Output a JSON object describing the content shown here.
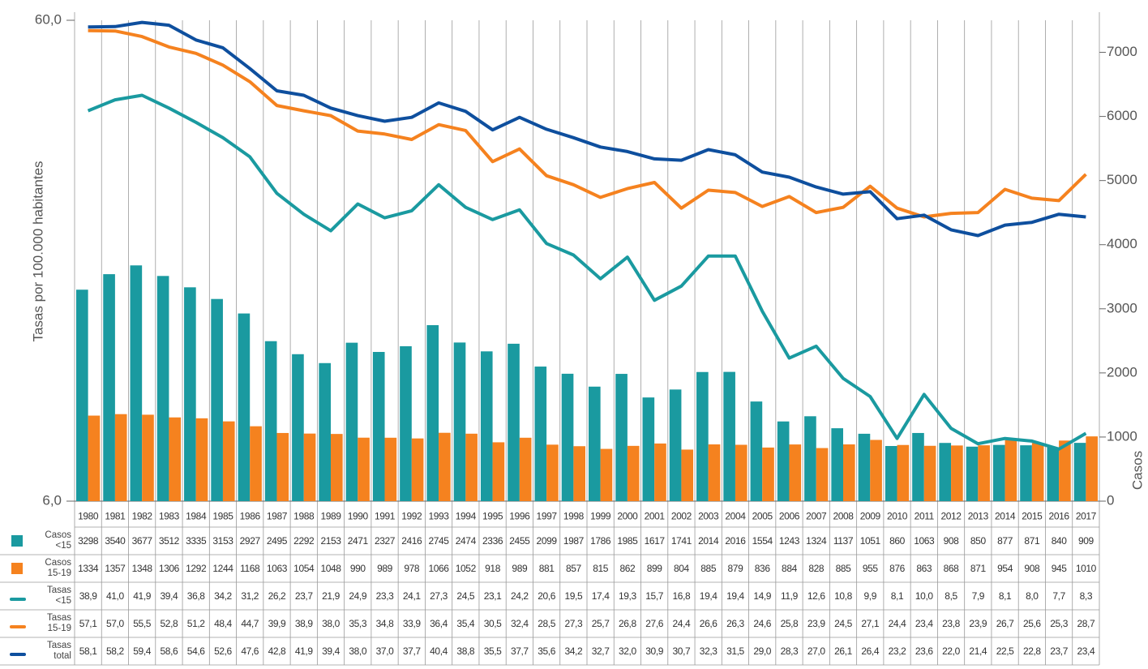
{
  "chart_data": {
    "type": "bar",
    "y_label": "Tasas por 100.000 habitantes",
    "y2_label": "Casos",
    "log_y": true,
    "ylim": [
      6,
      60
    ],
    "yticks": [
      {
        "value": 6,
        "label": "6,0"
      },
      {
        "value": 60,
        "label": "60,0"
      }
    ],
    "y2lim": [
      0,
      7500
    ],
    "y2ticks": [
      0,
      1000,
      2000,
      3000,
      4000,
      5000,
      6000,
      7000
    ],
    "categories": [
      "1980",
      "1981",
      "1982",
      "1983",
      "1984",
      "1985",
      "1986",
      "1987",
      "1988",
      "1989",
      "1990",
      "1991",
      "1992",
      "1993",
      "1994",
      "1995",
      "1996",
      "1997",
      "1998",
      "1999",
      "2000",
      "2001",
      "2002",
      "2003",
      "2004",
      "2005",
      "2006",
      "2007",
      "2008",
      "2009",
      "2010",
      "2011",
      "2012",
      "2013",
      "2014",
      "2015",
      "2016",
      "2017"
    ],
    "series": [
      {
        "name": [
          "Casos",
          "<15"
        ],
        "type": "bar",
        "axis": "y2",
        "color": "#1a9aa0",
        "values": [
          3298,
          3540,
          3677,
          3512,
          3335,
          3153,
          2927,
          2495,
          2292,
          2153,
          2471,
          2327,
          2416,
          2745,
          2474,
          2336,
          2455,
          2099,
          1987,
          1786,
          1985,
          1617,
          1741,
          2014,
          2016,
          1554,
          1243,
          1324,
          1137,
          1051,
          860,
          1063,
          908,
          850,
          877,
          871,
          840,
          909
        ]
      },
      {
        "name": [
          "Casos",
          "15-19"
        ],
        "type": "bar",
        "axis": "y2",
        "color": "#f5821f",
        "values": [
          1334,
          1357,
          1348,
          1306,
          1292,
          1244,
          1168,
          1063,
          1054,
          1048,
          990,
          989,
          978,
          1066,
          1052,
          918,
          989,
          881,
          857,
          815,
          862,
          899,
          804,
          885,
          879,
          836,
          884,
          828,
          885,
          955,
          876,
          863,
          868,
          871,
          954,
          908,
          945,
          1010
        ]
      },
      {
        "name": [
          "Tasas",
          "<15"
        ],
        "type": "line",
        "color": "#1a9aa0",
        "values": [
          38.9,
          41.0,
          41.9,
          39.4,
          36.8,
          34.2,
          31.2,
          26.2,
          23.7,
          21.9,
          24.9,
          23.3,
          24.1,
          27.3,
          24.5,
          23.1,
          24.2,
          20.6,
          19.5,
          17.4,
          19.3,
          15.7,
          16.8,
          19.4,
          19.4,
          14.9,
          11.9,
          12.6,
          10.8,
          9.9,
          8.1,
          10.0,
          8.5,
          7.9,
          8.1,
          8.0,
          7.7,
          8.3
        ],
        "value_labels": [
          "38,9",
          "41,0",
          "41,9",
          "39,4",
          "36,8",
          "34,2",
          "31,2",
          "26,2",
          "23,7",
          "21,9",
          "24,9",
          "23,3",
          "24,1",
          "27,3",
          "24,5",
          "23,1",
          "24,2",
          "20,6",
          "19,5",
          "17,4",
          "19,3",
          "15,7",
          "16,8",
          "19,4",
          "19,4",
          "14,9",
          "11,9",
          "12,6",
          "10,8",
          "9,9",
          "8,1",
          "10,0",
          "8,5",
          "7,9",
          "8,1",
          "8,0",
          "7,7",
          "8,3"
        ]
      },
      {
        "name": [
          "Tasas",
          "15-19"
        ],
        "type": "line",
        "color": "#f5821f",
        "values": [
          57.1,
          57.0,
          55.5,
          52.8,
          51.2,
          48.4,
          44.7,
          39.9,
          38.9,
          38.0,
          35.3,
          34.8,
          33.9,
          36.4,
          35.4,
          30.5,
          32.4,
          28.5,
          27.3,
          25.7,
          26.8,
          27.6,
          24.4,
          26.6,
          26.3,
          24.6,
          25.8,
          23.9,
          24.5,
          27.1,
          24.4,
          23.4,
          23.8,
          23.9,
          26.7,
          25.6,
          25.3,
          28.7
        ],
        "value_labels": [
          "57,1",
          "57,0",
          "55,5",
          "52,8",
          "51,2",
          "48,4",
          "44,7",
          "39,9",
          "38,9",
          "38,0",
          "35,3",
          "34,8",
          "33,9",
          "36,4",
          "35,4",
          "30,5",
          "32,4",
          "28,5",
          "27,3",
          "25,7",
          "26,8",
          "27,6",
          "24,4",
          "26,6",
          "26,3",
          "24,6",
          "25,8",
          "23,9",
          "24,5",
          "27,1",
          "24,4",
          "23,4",
          "23,8",
          "23,9",
          "26,7",
          "25,6",
          "25,3",
          "28,7"
        ]
      },
      {
        "name": [
          "Tasas",
          "total"
        ],
        "type": "line",
        "color": "#0e4f9e",
        "values": [
          58.1,
          58.2,
          59.4,
          58.6,
          54.6,
          52.6,
          47.6,
          42.8,
          41.9,
          39.4,
          38.0,
          37.0,
          37.7,
          40.4,
          38.8,
          35.5,
          37.7,
          35.6,
          34.2,
          32.7,
          32.0,
          30.9,
          30.7,
          32.3,
          31.5,
          29.0,
          28.3,
          27.0,
          26.1,
          26.4,
          23.2,
          23.6,
          22.0,
          21.4,
          22.5,
          22.8,
          23.7,
          23.4
        ],
        "value_labels": [
          "58,1",
          "58,2",
          "59,4",
          "58,6",
          "54,6",
          "52,6",
          "47,6",
          "42,8",
          "41,9",
          "39,4",
          "38,0",
          "37,0",
          "37,7",
          "40,4",
          "38,8",
          "35,5",
          "37,7",
          "35,6",
          "34,2",
          "32,7",
          "32,0",
          "30,9",
          "30,7",
          "32,3",
          "31,5",
          "29,0",
          "28,3",
          "27,0",
          "26,1",
          "26,4",
          "23,2",
          "23,6",
          "22,0",
          "21,4",
          "22,5",
          "22,8",
          "23,7",
          "23,4"
        ]
      }
    ]
  }
}
